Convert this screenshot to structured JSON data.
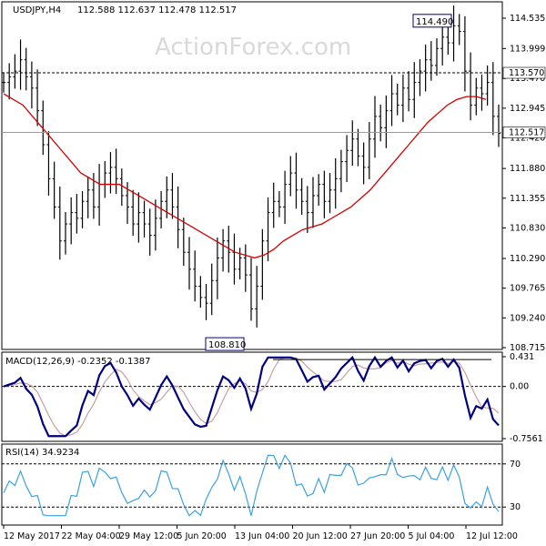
{
  "header": {
    "symbol": "USDJPY,H4",
    "ohlc": "112.588 112.637 112.478 112.517"
  },
  "watermark": "ActionForex.com",
  "colors": {
    "price_bars": "#000000",
    "sma": "#d40000",
    "macd_line": "#000080",
    "signal_line": "#c8a0a0",
    "rsi_line": "#3da0e0",
    "level_line": "#000000",
    "label_box_border": "#000080"
  },
  "chart_data": [
    {
      "type": "line",
      "name": "price",
      "title": "",
      "y_ticks": [
        "114.535",
        "113.999",
        "113.470",
        "112.945",
        "112.420",
        "111.880",
        "111.355",
        "110.830",
        "110.290",
        "109.765",
        "109.240",
        "108.715"
      ],
      "ylim": [
        108.715,
        114.535
      ],
      "x_ticks": [
        "12 May 2017",
        "22 May 04:00",
        "29 May 12:00",
        "5 Jun 20:00",
        "13 Jun 04:00",
        "20 Jun 12:00",
        "27 Jun 20:00",
        "5 Jul 04:00",
        "12 Jul 12:00"
      ],
      "current_price": "112.517",
      "resistance_level": "113.570",
      "annotations": {
        "high": "114.490",
        "low": "108.810"
      },
      "close": [
        113.4,
        113.5,
        113.6,
        113.8,
        113.5,
        113.3,
        112.9,
        112.3,
        111.7,
        111.2,
        110.6,
        110.9,
        111.1,
        111.0,
        111.3,
        111.5,
        111.2,
        111.6,
        111.8,
        111.9,
        111.7,
        111.4,
        111.2,
        110.9,
        111.1,
        110.9,
        110.7,
        111.0,
        111.3,
        111.5,
        111.2,
        110.8,
        110.4,
        110.1,
        109.8,
        109.6,
        109.5,
        109.9,
        110.3,
        110.6,
        110.4,
        110.1,
        110.3,
        110.0,
        109.4,
        109.8,
        110.6,
        111.1,
        111.3,
        111.2,
        111.6,
        111.8,
        111.5,
        111.3,
        111.1,
        111.4,
        111.6,
        111.3,
        111.5,
        111.7,
        112.0,
        112.2,
        112.4,
        112.1,
        111.9,
        112.4,
        112.8,
        112.6,
        112.9,
        113.2,
        113.0,
        113.3,
        113.1,
        113.4,
        113.6,
        113.8,
        113.7,
        114.0,
        114.2,
        114.1,
        114.4,
        114.3,
        113.6,
        113.0,
        113.3,
        113.2,
        113.4,
        112.8,
        112.5
      ],
      "sma": [
        113.2,
        113.1,
        113.0,
        112.8,
        112.6,
        112.4,
        112.2,
        112.0,
        111.8,
        111.7,
        111.6,
        111.6,
        111.6,
        111.5,
        111.4,
        111.3,
        111.2,
        111.1,
        111.0,
        110.9,
        110.8,
        110.7,
        110.6,
        110.5,
        110.4,
        110.35,
        110.3,
        110.35,
        110.45,
        110.6,
        110.7,
        110.8,
        110.85,
        110.9,
        111.0,
        111.1,
        111.2,
        111.35,
        111.5,
        111.7,
        111.9,
        112.1,
        112.3,
        112.5,
        112.7,
        112.85,
        113.0,
        113.1,
        113.15,
        113.15,
        113.1
      ],
      "sma_x_index_scale": "sma index i maps to close index i*1.78"
    },
    {
      "type": "line",
      "name": "macd",
      "title": "MACD(12,26,9) -0.2352 -0.1387",
      "y_ticks": [
        "0.431",
        "0.00",
        "-0.7561"
      ],
      "ylim": [
        -0.7561,
        0.431
      ]
    },
    {
      "type": "line",
      "name": "rsi",
      "title": "RSI(14) 34.9234",
      "y_ticks": [
        "70",
        "30"
      ],
      "ylim": [
        15,
        85
      ]
    }
  ]
}
